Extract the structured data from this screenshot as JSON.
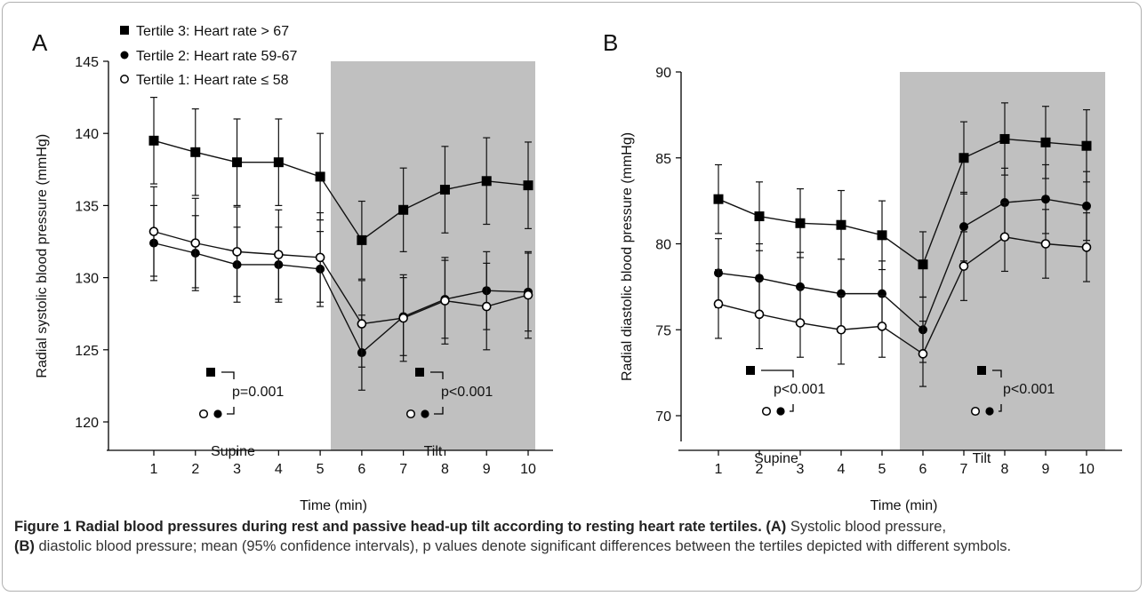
{
  "chart_data": [
    {
      "panel_label": "A",
      "type": "line",
      "xlabel": "Time (min)",
      "ylabel": "Radial systolic blood pressure (mmHg)",
      "ylim": [
        118,
        145
      ],
      "yticks": [
        120,
        125,
        130,
        135,
        140,
        145
      ],
      "xticks": [
        1,
        2,
        3,
        4,
        5,
        6,
        7,
        8,
        9,
        10
      ],
      "shaded_region": {
        "from": 5.5,
        "to": 10.5,
        "color": "#c0c0c0"
      },
      "legend": {
        "placement": "top-left",
        "entries": [
          "Tertile 3: Heart rate > 67",
          "Tertile 2: Heart rate 59-67",
          "Tertile 1: Heart rate ≤ 58"
        ]
      },
      "region_labels": [
        "Supine",
        "Tilt"
      ],
      "annotations": [
        {
          "text": "p=0.001",
          "period": "Supine"
        },
        {
          "text": "p<0.001",
          "period": "Tilt"
        }
      ],
      "series": [
        {
          "name": "Tertile 3: Heart rate > 67",
          "marker": "square-filled",
          "x": [
            1,
            2,
            3,
            4,
            5,
            6,
            7,
            8,
            9,
            10
          ],
          "y": [
            139.5,
            138.7,
            138.0,
            138.0,
            137.0,
            132.6,
            134.7,
            136.1,
            136.7,
            136.4
          ],
          "err": [
            3.0,
            3.0,
            3.0,
            3.0,
            3.0,
            2.7,
            2.9,
            3.0,
            3.0,
            3.0
          ]
        },
        {
          "name": "Tertile 2: Heart rate 59-67",
          "marker": "circle-filled",
          "x": [
            1,
            2,
            3,
            4,
            5,
            6,
            7,
            8,
            9,
            10
          ],
          "y": [
            132.4,
            131.7,
            130.9,
            130.9,
            130.6,
            124.8,
            127.3,
            128.5,
            129.1,
            129.0
          ],
          "err": [
            2.6,
            2.6,
            2.6,
            2.6,
            2.6,
            2.6,
            2.7,
            2.7,
            2.7,
            2.7
          ]
        },
        {
          "name": "Tertile 1: Heart rate ≤ 58",
          "marker": "circle-open",
          "x": [
            1,
            2,
            3,
            4,
            5,
            6,
            7,
            8,
            9,
            10
          ],
          "y": [
            133.2,
            132.4,
            131.8,
            131.6,
            131.4,
            126.8,
            127.2,
            128.4,
            128.0,
            128.8
          ],
          "err": [
            3.1,
            3.1,
            3.1,
            3.1,
            3.1,
            3.0,
            3.0,
            3.0,
            3.0,
            3.0
          ]
        }
      ]
    },
    {
      "panel_label": "B",
      "type": "line",
      "xlabel": "Time (min)",
      "ylabel": "Radial diastolic blood pressure (mmHg)",
      "ylim": [
        68.5,
        90
      ],
      "yticks": [
        70,
        75,
        80,
        85,
        90
      ],
      "xticks": [
        1,
        2,
        3,
        4,
        5,
        6,
        7,
        8,
        9,
        10
      ],
      "shaded_region": {
        "from": 5.5,
        "to": 10.5,
        "color": "#c0c0c0"
      },
      "region_labels": [
        "Supine",
        "Tilt"
      ],
      "annotations": [
        {
          "text": "p<0.001",
          "period": "Supine"
        },
        {
          "text": "p<0.001",
          "period": "Tilt"
        }
      ],
      "series": [
        {
          "name": "Tertile 3: Heart rate > 67",
          "marker": "square-filled",
          "x": [
            1,
            2,
            3,
            4,
            5,
            6,
            7,
            8,
            9,
            10
          ],
          "y": [
            82.6,
            81.6,
            81.2,
            81.1,
            80.5,
            78.8,
            85.0,
            86.1,
            85.9,
            85.7
          ],
          "err": [
            2.0,
            2.0,
            2.0,
            2.0,
            2.0,
            1.9,
            2.1,
            2.1,
            2.1,
            2.1
          ]
        },
        {
          "name": "Tertile 2: Heart rate 59-67",
          "marker": "circle-filled",
          "x": [
            1,
            2,
            3,
            4,
            5,
            6,
            7,
            8,
            9,
            10
          ],
          "y": [
            78.3,
            78.0,
            77.5,
            77.1,
            77.1,
            75.0,
            81.0,
            82.4,
            82.6,
            82.2
          ],
          "err": [
            2.0,
            2.0,
            2.0,
            2.0,
            1.9,
            1.9,
            2.0,
            2.0,
            2.0,
            2.0
          ]
        },
        {
          "name": "Tertile 1: Heart rate ≤ 58",
          "marker": "circle-open",
          "x": [
            1,
            2,
            3,
            4,
            5,
            6,
            7,
            8,
            9,
            10
          ],
          "y": [
            76.5,
            75.9,
            75.4,
            75.0,
            75.2,
            73.6,
            78.7,
            80.4,
            80.0,
            79.8
          ],
          "err": [
            2.0,
            2.0,
            2.0,
            2.0,
            1.8,
            1.9,
            2.0,
            2.0,
            2.0,
            2.0
          ]
        }
      ]
    }
  ],
  "caption": {
    "bold": "Figure 1 Radial blood pressures during rest and passive head-up tilt according to resting heart rate tertiles.",
    "part_a_label": "(A)",
    "part_a_text": " Systolic blood pressure,",
    "part_b_label": "(B)",
    "part_b_text": " diastolic blood pressure; mean (95% confidence intervals), p values denote significant differences between the tertiles depicted with different symbols."
  }
}
